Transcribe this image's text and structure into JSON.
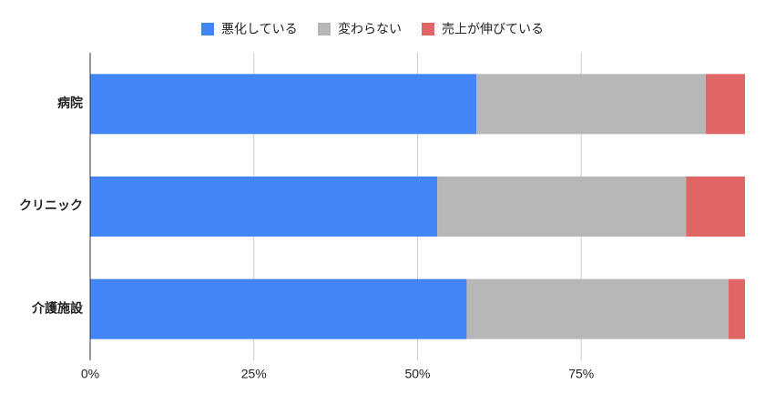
{
  "chart_data": {
    "type": "stacked-bar-horizontal",
    "categories": [
      "病院",
      "クリニック",
      "介護施設"
    ],
    "series": [
      {
        "name": "悪化している",
        "color": "#4285f4",
        "values": [
          59,
          53,
          57.5
        ]
      },
      {
        "name": "変わらない",
        "color": "#b7b7b7",
        "values": [
          35,
          38,
          40
        ]
      },
      {
        "name": "売上が伸びている",
        "color": "#e06666",
        "values": [
          6,
          9,
          2.5
        ]
      }
    ],
    "xlim": [
      0,
      100
    ],
    "xticks": [
      {
        "value": 0,
        "label": "0%"
      },
      {
        "value": 25,
        "label": "25%"
      },
      {
        "value": 50,
        "label": "50%"
      },
      {
        "value": 75,
        "label": "75%"
      }
    ],
    "grid": true,
    "legend": "top"
  }
}
